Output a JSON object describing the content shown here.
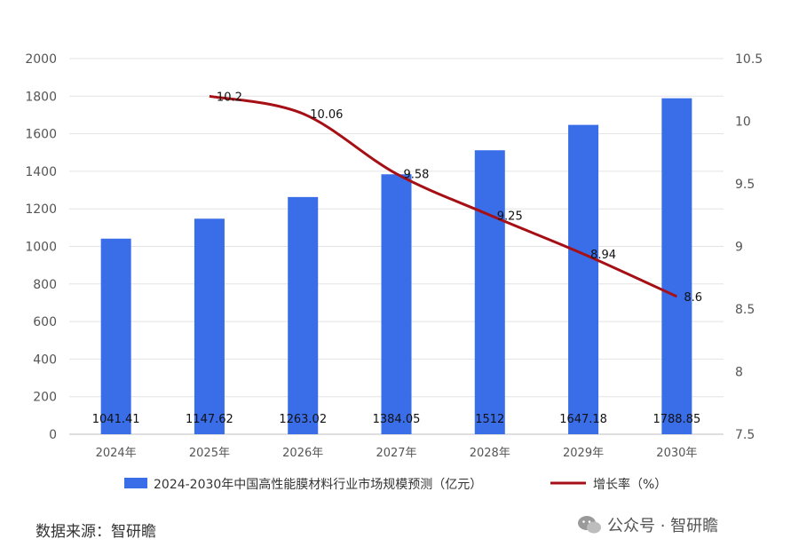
{
  "chart_data": {
    "type": "bar",
    "title": "",
    "categories": [
      "2024年",
      "2025年",
      "2026年",
      "2027年",
      "2028年",
      "2029年",
      "2030年"
    ],
    "series": [
      {
        "name": "2024-2030年中国高性能膜材料行业市场规模预测（亿元）",
        "type": "bar",
        "axis": "left",
        "color": "#3a6de8",
        "values": [
          1041.41,
          1147.62,
          1263.02,
          1384.05,
          1512,
          1647.18,
          1788.85
        ],
        "labels": [
          "1041.41",
          "1147.62",
          "1263.02",
          "1384.05",
          "1512",
          "1647.18",
          "1788.85"
        ]
      },
      {
        "name": "增长率（%）",
        "type": "line",
        "axis": "right",
        "color": "#a50f15",
        "values": [
          null,
          10.2,
          10.06,
          9.58,
          9.25,
          8.94,
          8.6
        ],
        "labels": [
          "",
          "10.2",
          "10.06",
          "9.58",
          "9.25",
          "8.94",
          "8.6"
        ]
      }
    ],
    "ylim_left": [
      0,
      2000
    ],
    "yticks_left": [
      "0",
      "200",
      "400",
      "600",
      "800",
      "1000",
      "1200",
      "1400",
      "1600",
      "1800",
      "2000"
    ],
    "ylim_right": [
      7.5,
      10.5
    ],
    "yticks_right": [
      "7.5",
      "8",
      "8.5",
      "9",
      "9.5",
      "10",
      "10.5"
    ],
    "grid": true,
    "legend_position": "bottom"
  },
  "footer": {
    "source": "数据来源：智研瞻",
    "watermark": "公众号 · 智研瞻",
    "watermark_icon": "wechat-icon"
  }
}
